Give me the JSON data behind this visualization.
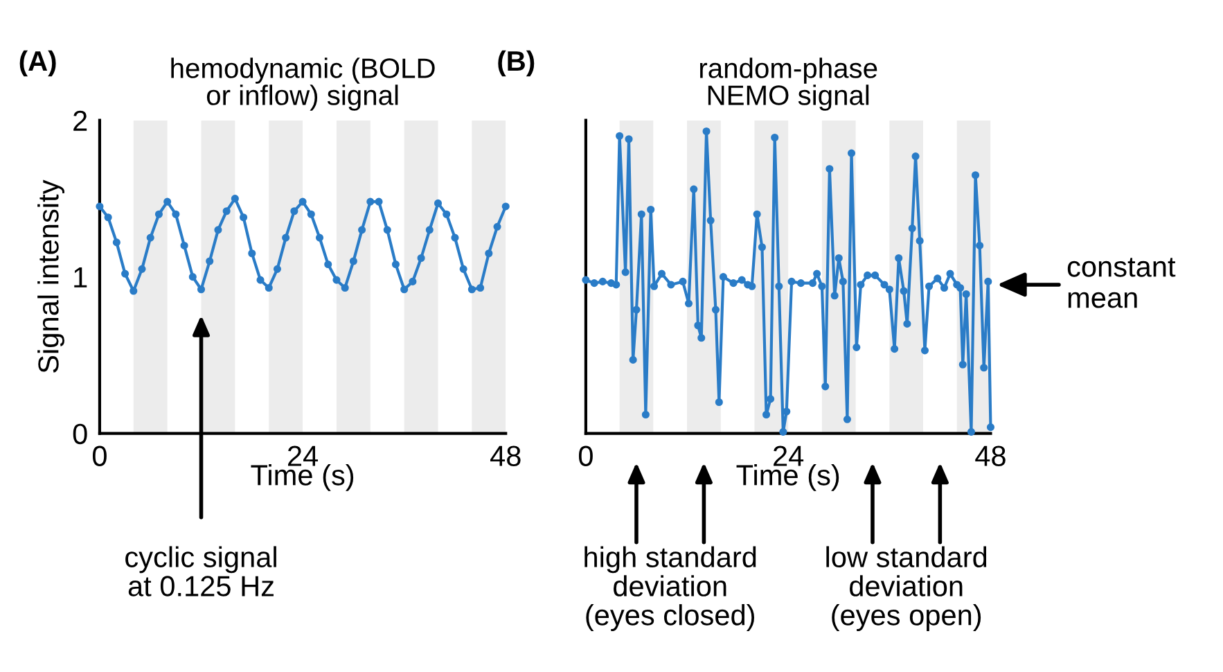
{
  "chart_data": [
    {
      "type": "line",
      "title": "hemodynamic (BOLD\nor inflow) signal",
      "xlabel": "Time (s)",
      "ylabel": "Signal intensity",
      "xlim": [
        0,
        48
      ],
      "ylim": [
        0,
        2
      ],
      "xticks": [
        0,
        24,
        48
      ],
      "yticks": [
        0,
        1,
        2
      ],
      "grid": false,
      "legend": false,
      "marker": "circle",
      "line_style": "solid",
      "bands": [
        {
          "axis": "x",
          "from": 4,
          "to": 8,
          "label": null,
          "color": "#ececec"
        },
        {
          "axis": "x",
          "from": 12,
          "to": 16,
          "label": null,
          "color": "#ececec"
        },
        {
          "axis": "x",
          "from": 20,
          "to": 24,
          "label": null,
          "color": "#ececec"
        },
        {
          "axis": "x",
          "from": 28,
          "to": 32,
          "label": null,
          "color": "#ececec"
        },
        {
          "axis": "x",
          "from": 36,
          "to": 40,
          "label": null,
          "color": "#ececec"
        },
        {
          "axis": "x",
          "from": 44,
          "to": 48,
          "label": null,
          "color": "#ececec"
        }
      ],
      "annotations": [
        "(A)",
        "cyclic signal\nat 0.125 Hz"
      ],
      "series": [
        {
          "color": "#2a7cc7",
          "x": [
            0,
            1,
            2,
            3,
            4,
            5,
            6,
            7,
            8,
            9,
            10,
            11,
            12,
            13,
            14,
            15,
            16,
            17,
            18,
            19,
            20,
            21,
            22,
            23,
            24,
            25,
            26,
            27,
            28,
            29,
            30,
            31,
            32,
            33,
            34,
            35,
            36,
            37,
            38,
            39,
            40,
            41,
            42,
            43,
            44,
            45,
            46,
            47,
            48
          ],
          "values": [
            1.45,
            1.38,
            1.22,
            1.02,
            0.91,
            1.05,
            1.25,
            1.4,
            1.48,
            1.4,
            1.2,
            1.0,
            0.92,
            1.1,
            1.3,
            1.42,
            1.5,
            1.38,
            1.15,
            0.98,
            0.93,
            1.05,
            1.25,
            1.42,
            1.48,
            1.4,
            1.25,
            1.08,
            0.98,
            0.93,
            1.1,
            1.3,
            1.48,
            1.48,
            1.3,
            1.08,
            0.92,
            0.97,
            1.12,
            1.3,
            1.47,
            1.4,
            1.25,
            1.05,
            0.92,
            0.93,
            1.15,
            1.32,
            1.45
          ]
        }
      ]
    },
    {
      "type": "line",
      "title": "random-phase\nNEMO signal",
      "xlabel": "Time (s)",
      "xlim": [
        0,
        48
      ],
      "ylim": [
        0,
        2
      ],
      "xticks": [
        0,
        24,
        48
      ],
      "tick_labels": "x",
      "grid": false,
      "legend": false,
      "marker": "circle",
      "line_style": "solid",
      "bands": [
        {
          "axis": "x",
          "from": 4,
          "to": 8,
          "label": null,
          "color": "#ececec"
        },
        {
          "axis": "x",
          "from": 12,
          "to": 16,
          "label": null,
          "color": "#ececec"
        },
        {
          "axis": "x",
          "from": 20,
          "to": 24,
          "label": null,
          "color": "#ececec"
        },
        {
          "axis": "x",
          "from": 28,
          "to": 32,
          "label": null,
          "color": "#ececec"
        },
        {
          "axis": "x",
          "from": 36,
          "to": 40,
          "label": null,
          "color": "#ececec"
        },
        {
          "axis": "x",
          "from": 44,
          "to": 48,
          "label": null,
          "color": "#ececec"
        }
      ],
      "annotations": [
        "(B)",
        {
          "text": "constant\nmean",
          "x": 48,
          "y": 0.95
        },
        "high standard\ndeviation\n(eyes closed)",
        "low standard\ndeviation\n(eyes open)"
      ],
      "series": [
        {
          "color": "#2a7cc7",
          "x": [
            0,
            1,
            2,
            3,
            3.6,
            4.0,
            4.7,
            5.1,
            5.6,
            6.0,
            6.6,
            7.1,
            7.7,
            8.1,
            9.0,
            10.1,
            11.5,
            12.2,
            12.8,
            13.3,
            13.7,
            14.3,
            14.8,
            15.4,
            15.8,
            16.3,
            17.5,
            18.5,
            19.2,
            19.7,
            20.3,
            20.9,
            21.4,
            21.9,
            22.4,
            22.9,
            23.4,
            23.8,
            24.4,
            25.5,
            26.9,
            27.4,
            28.0,
            28.4,
            28.9,
            29.5,
            30.0,
            30.5,
            31.0,
            31.5,
            32.1,
            32.6,
            33.4,
            34.3,
            35.4,
            36.0,
            36.6,
            37.1,
            37.7,
            38.1,
            38.7,
            39.1,
            39.6,
            40.2,
            40.7,
            41.7,
            42.5,
            43.2,
            44.0,
            44.4,
            44.7,
            45.1,
            45.7,
            46.2,
            46.7,
            47.2,
            47.7,
            48.0
          ],
          "values": [
            0.98,
            0.96,
            0.97,
            0.96,
            0.95,
            1.9,
            1.03,
            1.88,
            0.47,
            0.79,
            1.4,
            0.12,
            1.43,
            0.94,
            1.02,
            0.95,
            0.97,
            0.83,
            1.56,
            0.69,
            0.61,
            1.93,
            1.36,
            0.79,
            0.2,
            1.0,
            0.96,
            0.98,
            0.95,
            0.94,
            1.4,
            1.19,
            0.12,
            0.22,
            1.89,
            0.94,
            0.01,
            0.14,
            0.97,
            0.96,
            0.96,
            1.02,
            0.94,
            0.3,
            1.69,
            0.88,
            1.12,
            0.97,
            0.09,
            1.79,
            0.55,
            0.95,
            1.01,
            1.01,
            0.95,
            0.92,
            0.54,
            1.12,
            0.91,
            0.7,
            1.31,
            1.77,
            1.23,
            0.53,
            0.94,
            0.99,
            0.93,
            1.02,
            0.95,
            0.93,
            0.44,
            0.89,
            0.01,
            1.65,
            1.2,
            0.42,
            0.97,
            0.04
          ]
        }
      ]
    }
  ]
}
